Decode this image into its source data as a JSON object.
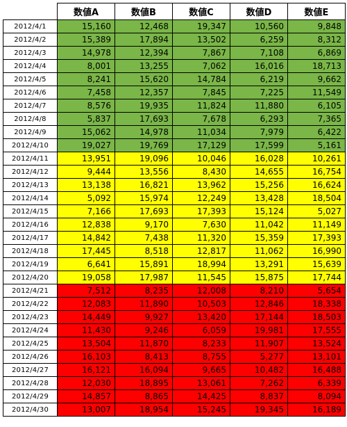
{
  "headers": [
    "",
    "数値A",
    "数値B",
    "数値C",
    "数値D",
    "数値E"
  ],
  "group_colors": {
    "green": "#7AB648",
    "yellow": "#FFFF00",
    "red": "#FF0000"
  },
  "rows": [
    {
      "date": "2012/4/1",
      "group": "green",
      "values": [
        "15,160",
        "12,468",
        "19,347",
        "10,560",
        "9,848"
      ]
    },
    {
      "date": "2012/4/2",
      "group": "green",
      "values": [
        "15,389",
        "17,894",
        "13,502",
        "6,259",
        "8,312"
      ]
    },
    {
      "date": "2012/4/3",
      "group": "green",
      "values": [
        "14,978",
        "12,394",
        "7,867",
        "7,108",
        "6,869"
      ]
    },
    {
      "date": "2012/4/4",
      "group": "green",
      "values": [
        "8,001",
        "13,255",
        "7,062",
        "16,016",
        "18,713"
      ]
    },
    {
      "date": "2012/4/5",
      "group": "green",
      "values": [
        "8,241",
        "15,620",
        "14,784",
        "6,219",
        "9,662"
      ]
    },
    {
      "date": "2012/4/6",
      "group": "green",
      "values": [
        "7,458",
        "12,357",
        "7,845",
        "7,225",
        "11,549"
      ]
    },
    {
      "date": "2012/4/7",
      "group": "green",
      "values": [
        "8,576",
        "19,935",
        "11,824",
        "11,880",
        "6,105"
      ]
    },
    {
      "date": "2012/4/8",
      "group": "green",
      "values": [
        "5,837",
        "17,693",
        "7,678",
        "6,293",
        "7,365"
      ]
    },
    {
      "date": "2012/4/9",
      "group": "green",
      "values": [
        "15,062",
        "14,978",
        "11,034",
        "7,979",
        "6,422"
      ]
    },
    {
      "date": "2012/4/10",
      "group": "green",
      "values": [
        "19,027",
        "19,769",
        "17,129",
        "17,599",
        "5,161"
      ]
    },
    {
      "date": "2012/4/11",
      "group": "yellow",
      "values": [
        "13,951",
        "19,096",
        "10,046",
        "16,028",
        "10,261"
      ]
    },
    {
      "date": "2012/4/12",
      "group": "yellow",
      "values": [
        "9,444",
        "13,556",
        "8,430",
        "14,655",
        "16,754"
      ]
    },
    {
      "date": "2012/4/13",
      "group": "yellow",
      "values": [
        "13,138",
        "16,821",
        "13,962",
        "15,256",
        "16,624"
      ]
    },
    {
      "date": "2012/4/14",
      "group": "yellow",
      "values": [
        "5,092",
        "15,974",
        "12,249",
        "13,428",
        "18,504"
      ]
    },
    {
      "date": "2012/4/15",
      "group": "yellow",
      "values": [
        "7,166",
        "17,693",
        "17,393",
        "15,124",
        "5,027"
      ]
    },
    {
      "date": "2012/4/16",
      "group": "yellow",
      "values": [
        "12,838",
        "9,170",
        "7,630",
        "11,042",
        "11,149"
      ]
    },
    {
      "date": "2012/4/17",
      "group": "yellow",
      "values": [
        "14,842",
        "7,438",
        "11,320",
        "15,359",
        "17,393"
      ]
    },
    {
      "date": "2012/4/18",
      "group": "yellow",
      "values": [
        "17,445",
        "8,518",
        "12,817",
        "11,062",
        "16,990"
      ]
    },
    {
      "date": "2012/4/19",
      "group": "yellow",
      "values": [
        "6,641",
        "15,891",
        "18,994",
        "13,291",
        "15,639"
      ]
    },
    {
      "date": "2012/4/20",
      "group": "yellow",
      "values": [
        "19,058",
        "17,987",
        "11,545",
        "15,875",
        "17,744"
      ]
    },
    {
      "date": "2012/4/21",
      "group": "red",
      "values": [
        "7,512",
        "8,235",
        "12,008",
        "8,210",
        "5,654"
      ]
    },
    {
      "date": "2012/4/22",
      "group": "red",
      "values": [
        "12,083",
        "11,890",
        "10,503",
        "12,846",
        "18,338"
      ]
    },
    {
      "date": "2012/4/23",
      "group": "red",
      "values": [
        "14,449",
        "9,927",
        "13,420",
        "17,144",
        "18,503"
      ]
    },
    {
      "date": "2012/4/24",
      "group": "red",
      "values": [
        "11,430",
        "9,246",
        "6,059",
        "19,981",
        "17,555"
      ]
    },
    {
      "date": "2012/4/25",
      "group": "red",
      "values": [
        "13,504",
        "11,870",
        "8,233",
        "11,907",
        "13,524"
      ]
    },
    {
      "date": "2012/4/26",
      "group": "red",
      "values": [
        "16,103",
        "8,413",
        "8,755",
        "5,277",
        "13,101"
      ]
    },
    {
      "date": "2012/4/27",
      "group": "red",
      "values": [
        "16,121",
        "16,094",
        "9,665",
        "10,482",
        "16,488"
      ]
    },
    {
      "date": "2012/4/28",
      "group": "red",
      "values": [
        "12,030",
        "18,895",
        "13,061",
        "7,262",
        "6,339"
      ]
    },
    {
      "date": "2012/4/29",
      "group": "red",
      "values": [
        "14,857",
        "8,865",
        "14,425",
        "8,837",
        "8,094"
      ]
    },
    {
      "date": "2012/4/30",
      "group": "red",
      "values": [
        "13,007",
        "18,954",
        "15,245",
        "19,345",
        "16,189"
      ]
    }
  ]
}
